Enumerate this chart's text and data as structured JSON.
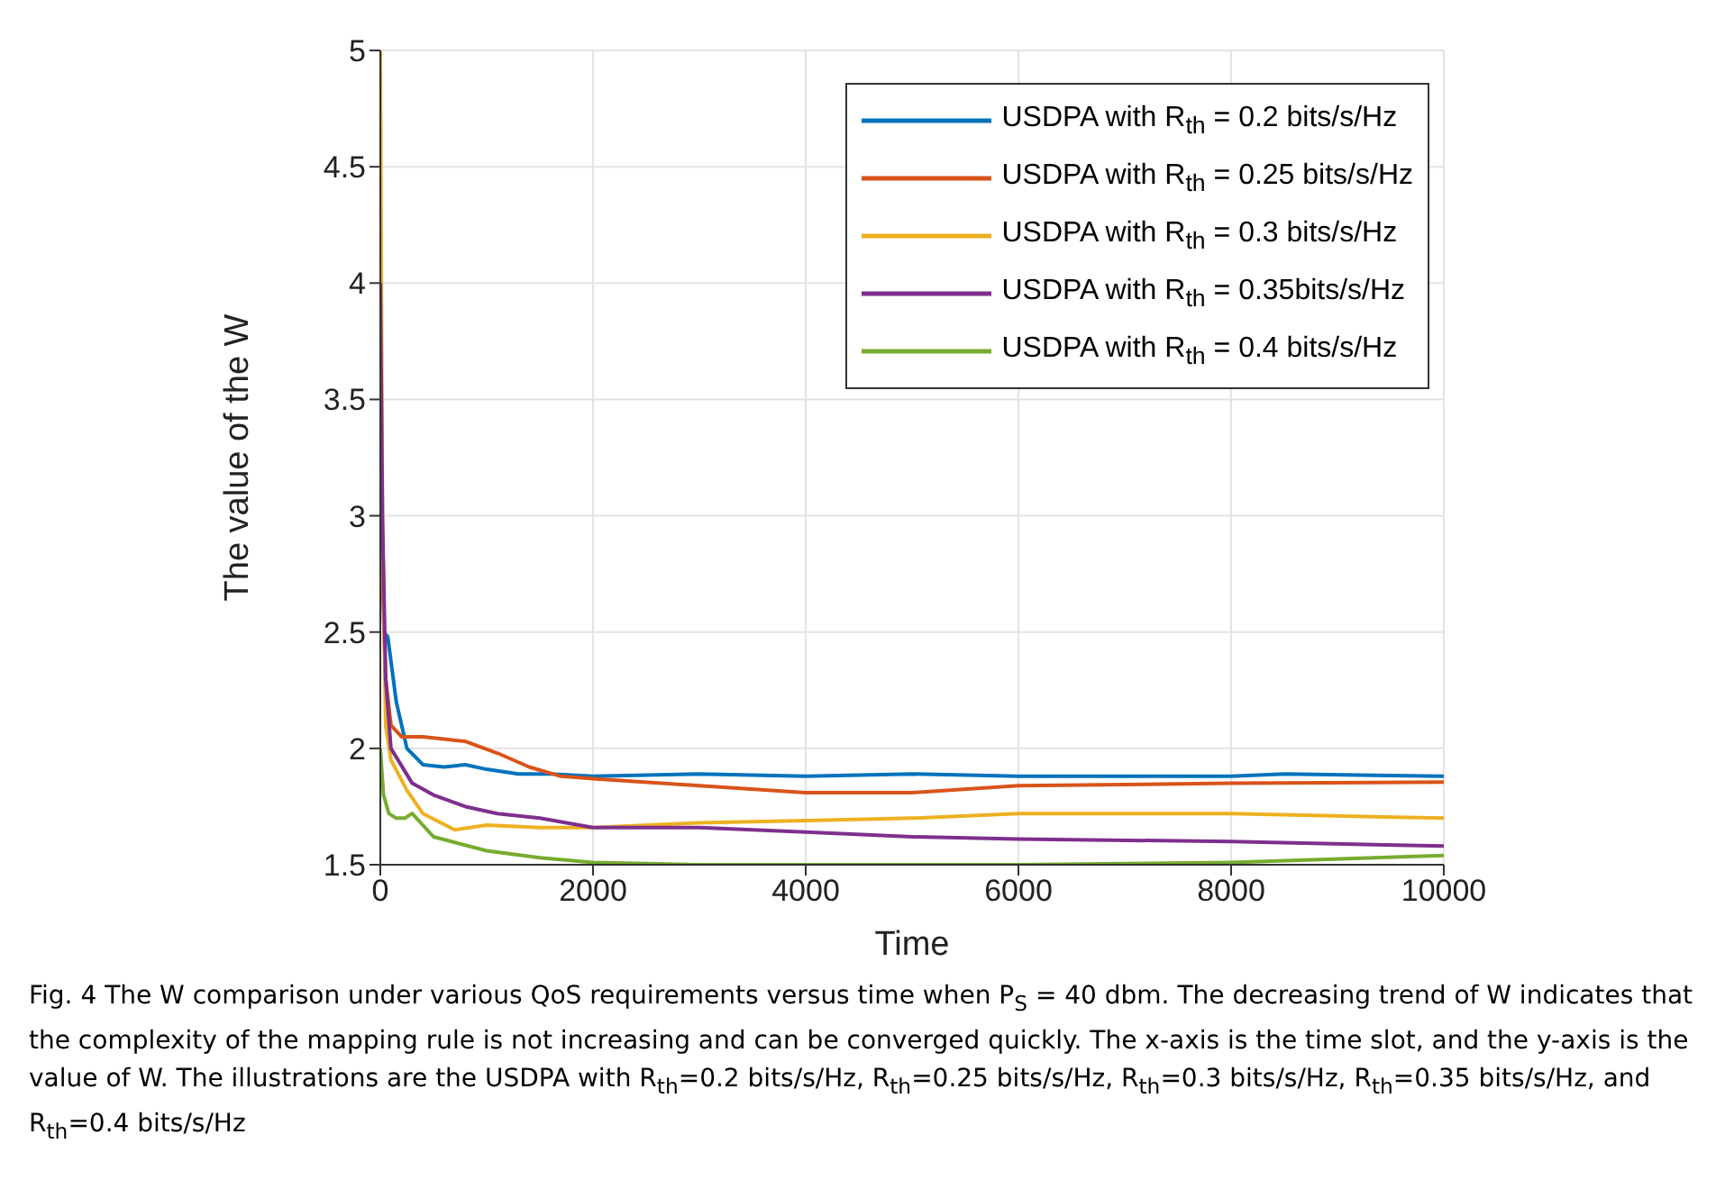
{
  "chart_data": {
    "type": "line",
    "xlabel": "Time",
    "ylabel": "The value of the  W",
    "xlim": [
      0,
      10000
    ],
    "xticks": [
      0,
      2000,
      4000,
      6000,
      8000,
      10000
    ],
    "ylim": [
      1.5,
      5
    ],
    "yticks": [
      1.5,
      2,
      2.5,
      3,
      3.5,
      4,
      4.5,
      5
    ],
    "grid": true,
    "legend": "top right",
    "marker": "none",
    "line_style": "solid",
    "series": [
      {
        "name": "USDPA with  R$_{th}$ = 0.2 bits/s/Hz",
        "color": "#0072bd",
        "x": [
          30,
          70,
          150,
          250,
          400,
          600,
          800,
          1000,
          1300,
          1600,
          2000,
          3000,
          4000,
          5000,
          6000,
          8000,
          8500,
          10000
        ],
        "values": [
          2.5,
          2.48,
          2.2,
          2.0,
          1.93,
          1.92,
          1.93,
          1.91,
          1.89,
          1.89,
          1.88,
          1.89,
          1.88,
          1.89,
          1.88,
          1.88,
          1.89,
          1.88
        ]
      },
      {
        "name": "USDPA with  R$_{th}$ = 0.25 bits/s/Hz",
        "color": "#d95319",
        "x": [
          0,
          50,
          100,
          200,
          400,
          600,
          800,
          1100,
          1400,
          1700,
          2000,
          3000,
          4000,
          5000,
          6000,
          8000,
          10000
        ],
        "values": [
          3.0,
          2.3,
          2.1,
          2.05,
          2.05,
          2.04,
          2.03,
          1.98,
          1.92,
          1.88,
          1.87,
          1.84,
          1.81,
          1.81,
          1.84,
          1.85,
          1.855
        ]
      },
      {
        "name": "USDPA with  R$_{th}$ = 0.3 bits/s/Hz",
        "color": "#edb120",
        "x": [
          0,
          20,
          50,
          100,
          250,
          400,
          700,
          1000,
          1500,
          2000,
          3000,
          4000,
          5000,
          6000,
          8000,
          10000
        ],
        "values": [
          5,
          3.0,
          2.1,
          1.95,
          1.82,
          1.72,
          1.65,
          1.67,
          1.66,
          1.66,
          1.68,
          1.69,
          1.7,
          1.72,
          1.72,
          1.7
        ]
      },
      {
        "name": "USDPA with  R$_{th}$ = 0.35bits/s/Hz",
        "color": "#7e2f8e",
        "x": [
          0,
          20,
          50,
          100,
          300,
          500,
          800,
          1100,
          1500,
          2000,
          3000,
          4000,
          5000,
          6000,
          8000,
          10000
        ],
        "values": [
          4,
          3.0,
          2.3,
          2.0,
          1.85,
          1.8,
          1.75,
          1.72,
          1.7,
          1.66,
          1.66,
          1.64,
          1.62,
          1.61,
          1.6,
          1.58
        ]
      },
      {
        "name": "USDPA with  R$_{th}$ = 0.4 bits/s/Hz",
        "color": "#77ac30",
        "x": [
          0,
          30,
          80,
          150,
          230,
          300,
          500,
          1000,
          1500,
          2000,
          3000,
          4000,
          6000,
          8000,
          10000
        ],
        "values": [
          2.0,
          1.8,
          1.72,
          1.7,
          1.7,
          1.72,
          1.62,
          1.56,
          1.53,
          1.51,
          1.5,
          1.5,
          1.5,
          1.51,
          1.54
        ]
      }
    ],
    "annotations": [
      "Fig. 4  The W comparison under various QoS requirements versus time when P$_{S}$ = 40 dbm. The decreasing trend of W indicates that the complexity of the mapping rule is not increasing and can be converged quickly. The x-axis is the time slot, and the y-axis is the value of W. The illustrations are the USDPA with R$_{th}$=0.2 bits/s/Hz, R$_{th}$=0.25 bits/s/Hz, R$_{th}$=0.3 bits/s/Hz, R$_{th}$=0.35 bits/s/Hz, and R$_{th}$=0.4 bits/s/Hz"
    ]
  }
}
